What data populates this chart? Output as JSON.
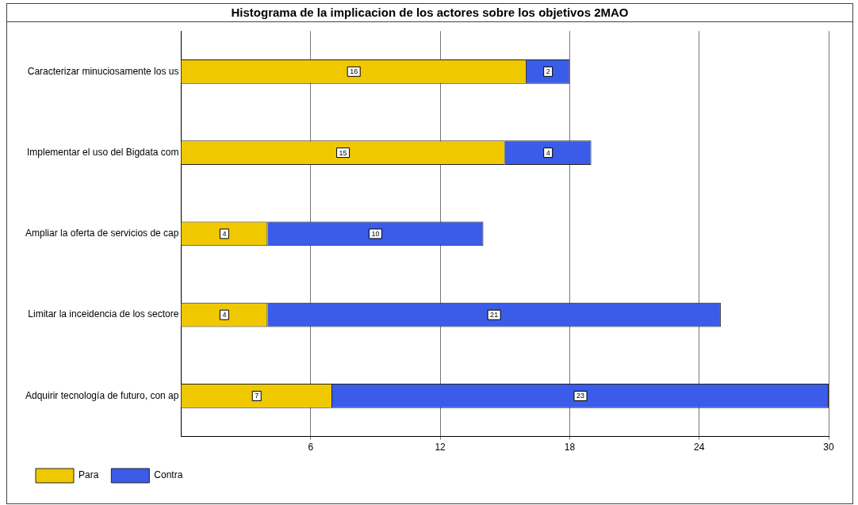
{
  "chart_data": {
    "type": "bar",
    "title": "Histograma de la implicacion de los actores sobre los objetivos 2MAO",
    "orientation": "horizontal",
    "stacked": true,
    "categories": [
      "Caracterizar minuciosamente los us",
      "Implementar el uso del Bigdata com",
      "Ampliar la oferta de servicios de cap",
      "Limitar la inceidencia de los sectore",
      "Adquirir tecnología de futuro, con ap"
    ],
    "series": [
      {
        "name": "Para",
        "color": "#f0c800",
        "values": [
          16,
          15,
          4,
          4,
          7
        ]
      },
      {
        "name": "Contra",
        "color": "#3a5ce8",
        "values": [
          2,
          4,
          10,
          21,
          23
        ]
      }
    ],
    "xlim": [
      0,
      30
    ],
    "xticks": [
      6,
      12,
      18,
      24,
      30
    ],
    "grid": "x",
    "legend": "bottom left",
    "data_labels": true
  }
}
